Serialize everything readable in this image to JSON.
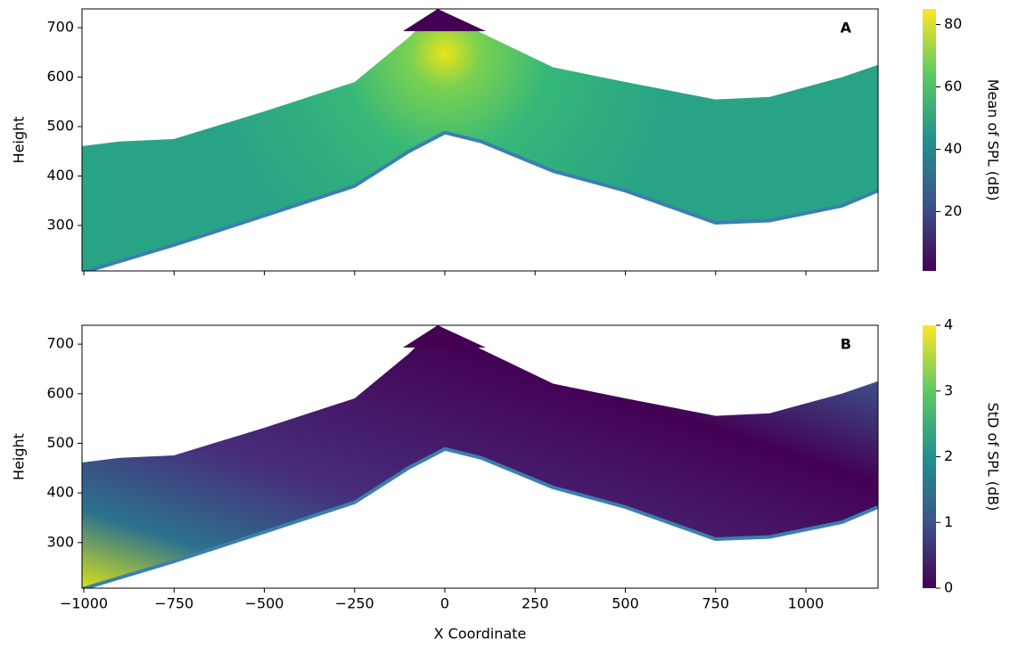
{
  "chart_data": [
    {
      "type": "heatmap",
      "label": "A",
      "ylabel": "Height",
      "xlim": [
        -1005,
        1200
      ],
      "ylim": [
        208,
        738
      ],
      "yticks": [
        300,
        400,
        500,
        600,
        700
      ],
      "colorbar": {
        "label": "Mean of SPL (dB)",
        "lim": [
          1,
          85
        ],
        "ticks": [
          20,
          40,
          60,
          80
        ]
      }
    },
    {
      "type": "heatmap",
      "label": "B",
      "ylabel": "Height",
      "xlabel": "X Coordinate",
      "xlim": [
        -1005,
        1200
      ],
      "ylim": [
        208,
        738
      ],
      "xticks": [
        {
          "value": -1000,
          "label": "−1000"
        },
        {
          "value": -750,
          "label": "−750"
        },
        {
          "value": -500,
          "label": "−500"
        },
        {
          "value": -250,
          "label": "−250"
        },
        0,
        250,
        500,
        750,
        1000
      ],
      "yticks": [
        300,
        400,
        500,
        600,
        700
      ],
      "colorbar": {
        "label": "StD of SPL (dB)",
        "lim": [
          0,
          4
        ],
        "ticks": [
          0,
          1,
          2,
          3,
          4
        ]
      }
    }
  ]
}
